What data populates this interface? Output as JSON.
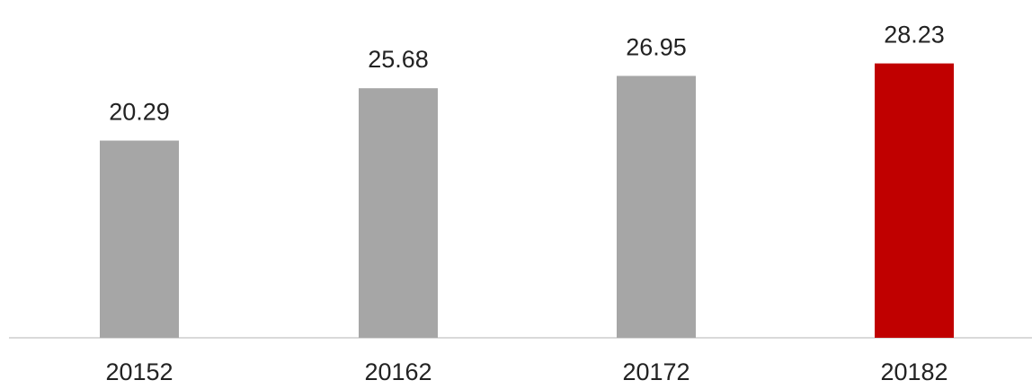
{
  "chart_data": {
    "type": "bar",
    "categories": [
      "20152",
      "20162",
      "20172",
      "20182"
    ],
    "values": [
      20.29,
      25.68,
      26.95,
      28.23
    ],
    "value_labels": [
      "20.29",
      "25.68",
      "26.95",
      "28.23"
    ],
    "ylim": [
      0,
      30
    ],
    "grid": false,
    "legend": "none",
    "colors": {
      "default_bar": "#a6a6a6",
      "highlight_bar": "#c00000",
      "axis": "#d9d9d9",
      "text": "#222222"
    },
    "highlight_index": 3
  }
}
